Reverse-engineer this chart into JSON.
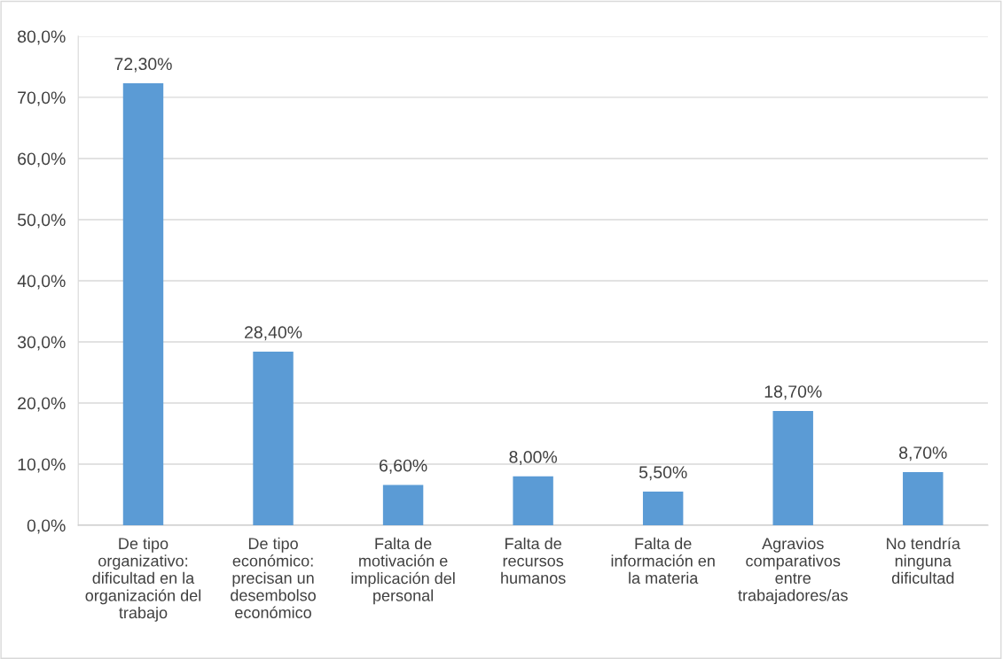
{
  "chart_data": {
    "type": "bar",
    "categories": [
      "De tipo\norganizativo:\ndificultad en la\norganización del\ntrabajo",
      "De tipo\neconómico:\nprecisan un\ndesembolso\neconómico",
      "Falta de\nmotivación e\nimplicación del\npersonal",
      "Falta de\nrecursos\nhumanos",
      "Falta de\ninformación en\nla materia",
      "Agravios\ncomparativos\nentre\ntrabajadores/as",
      "No tendría\nninguna\ndificultad"
    ],
    "values": [
      72.3,
      28.4,
      6.6,
      8.0,
      5.5,
      18.7,
      8.7
    ],
    "value_labels": [
      "72,30%",
      "28,40%",
      "6,60%",
      "8,00%",
      "5,50%",
      "18,70%",
      "8,70%"
    ],
    "color": "#5b9bd5",
    "ylim": [
      0,
      80
    ],
    "yticks": [
      {
        "value": 0,
        "label": "0,0%"
      },
      {
        "value": 10,
        "label": "10,0%"
      },
      {
        "value": 20,
        "label": "20,0%"
      },
      {
        "value": 30,
        "label": "30,0%"
      },
      {
        "value": 40,
        "label": "40,0%"
      },
      {
        "value": 50,
        "label": "50,0%"
      },
      {
        "value": 60,
        "label": "60,0%"
      },
      {
        "value": 70,
        "label": "70,0%"
      },
      {
        "value": 80,
        "label": "80,0%"
      }
    ],
    "grid": "y",
    "legend": false
  }
}
